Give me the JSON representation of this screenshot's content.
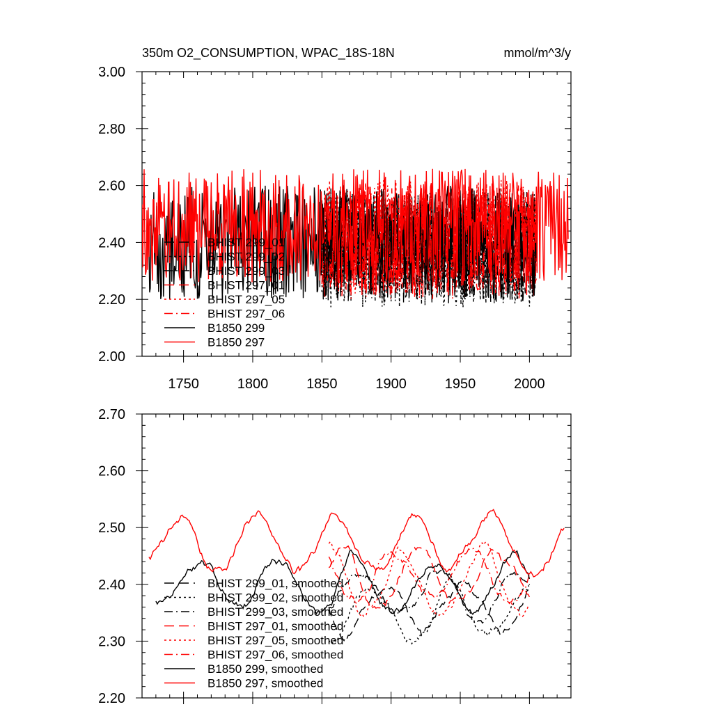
{
  "figure": {
    "title_left": "350m O2_CONSUMPTION, WPAC_18S-18N",
    "title_right": "mmol/m^3/y"
  },
  "chart_data": [
    {
      "type": "line",
      "title": "350m O2_CONSUMPTION, WPAC_18S-18N",
      "units": "mmol/m^3/y",
      "xlim": [
        1720,
        2030
      ],
      "ylim": [
        2.0,
        3.0
      ],
      "xticks": [
        1750,
        1800,
        1850,
        1900,
        1950,
        2000
      ],
      "xtick_labels": [
        "1750",
        "1800",
        "1850",
        "1900",
        "1950",
        "2000"
      ],
      "yticks": [
        2.0,
        2.2,
        2.4,
        2.6,
        2.8,
        3.0
      ],
      "ytick_labels": [
        "2.00",
        "2.20",
        "2.40",
        "2.60",
        "2.80",
        "3.00"
      ],
      "legend_position": "lower-left",
      "series": [
        {
          "name": "BHIST 299_01",
          "color": "#000000",
          "dash": "long-dash",
          "start": 1850,
          "end": 2005,
          "mean": 2.38,
          "amp": 0.2,
          "seed": 11,
          "smooth": false
        },
        {
          "name": "BHIST 299_02",
          "color": "#000000",
          "dash": "dot",
          "start": 1850,
          "end": 2005,
          "mean": 2.37,
          "amp": 0.2,
          "seed": 12,
          "smooth": false
        },
        {
          "name": "BHIST 299_03",
          "color": "#000000",
          "dash": "dash-dot",
          "start": 1850,
          "end": 2005,
          "mean": 2.39,
          "amp": 0.2,
          "seed": 13,
          "smooth": false
        },
        {
          "name": "BHIST 297_01",
          "color": "#ff0000",
          "dash": "long-dash",
          "start": 1850,
          "end": 2005,
          "mean": 2.41,
          "amp": 0.2,
          "seed": 21,
          "smooth": false
        },
        {
          "name": "BHIST 297_05",
          "color": "#ff0000",
          "dash": "dot",
          "start": 1850,
          "end": 2005,
          "mean": 2.42,
          "amp": 0.2,
          "seed": 22,
          "smooth": false
        },
        {
          "name": "BHIST 297_06",
          "color": "#ff0000",
          "dash": "dash-dot",
          "start": 1850,
          "end": 2005,
          "mean": 2.4,
          "amp": 0.2,
          "seed": 23,
          "smooth": false
        },
        {
          "name": "B1850 299",
          "color": "#000000",
          "dash": "solid",
          "start": 1725,
          "end": 2005,
          "mean": 2.4,
          "amp": 0.2,
          "seed": 31,
          "smooth": false
        },
        {
          "name": "B1850 297",
          "color": "#ff0000",
          "dash": "solid",
          "start": 1720,
          "end": 2028,
          "mean": 2.46,
          "amp": 0.2,
          "seed": 32,
          "smooth": false
        }
      ]
    },
    {
      "type": "line",
      "xlim": [
        1720,
        2030
      ],
      "ylim": [
        2.2,
        2.7
      ],
      "xticks": [
        1750,
        1800,
        1850,
        1900,
        1950,
        2000
      ],
      "xtick_labels": [],
      "yticks": [
        2.2,
        2.3,
        2.4,
        2.5,
        2.6,
        2.7
      ],
      "ytick_labels": [
        "2.20",
        "2.30",
        "2.40",
        "2.50",
        "2.60",
        "2.70"
      ],
      "legend_position": "lower-left",
      "series": [
        {
          "name": "BHIST 299_01, smoothed",
          "color": "#000000",
          "dash": "long-dash",
          "start": 1855,
          "end": 2000,
          "mean": 2.36,
          "amp": 0.05,
          "seed": 41,
          "smooth": true
        },
        {
          "name": "BHIST 299_02, smoothed",
          "color": "#000000",
          "dash": "dot",
          "start": 1855,
          "end": 2000,
          "mean": 2.35,
          "amp": 0.05,
          "seed": 42,
          "smooth": true
        },
        {
          "name": "BHIST 299_03, smoothed",
          "color": "#000000",
          "dash": "dash-dot",
          "start": 1855,
          "end": 2000,
          "mean": 2.38,
          "amp": 0.05,
          "seed": 43,
          "smooth": true
        },
        {
          "name": "BHIST 297_01, smoothed",
          "color": "#ff0000",
          "dash": "long-dash",
          "start": 1855,
          "end": 2000,
          "mean": 2.41,
          "amp": 0.05,
          "seed": 51,
          "smooth": true
        },
        {
          "name": "BHIST 297_05, smoothed",
          "color": "#ff0000",
          "dash": "dot",
          "start": 1855,
          "end": 2000,
          "mean": 2.4,
          "amp": 0.06,
          "seed": 52,
          "smooth": true
        },
        {
          "name": "BHIST 297_06, smoothed",
          "color": "#ff0000",
          "dash": "dash-dot",
          "start": 1855,
          "end": 2000,
          "mean": 2.42,
          "amp": 0.05,
          "seed": 53,
          "smooth": true
        },
        {
          "name": "B1850 299, smoothed",
          "color": "#000000",
          "dash": "solid",
          "start": 1730,
          "end": 2000,
          "mean": 2.4,
          "amp": 0.05,
          "seed": 61,
          "smooth": true
        },
        {
          "name": "B1850 297, smoothed",
          "color": "#ff0000",
          "dash": "solid",
          "start": 1725,
          "end": 2025,
          "mean": 2.47,
          "amp": 0.05,
          "seed": 62,
          "smooth": true
        }
      ]
    }
  ]
}
